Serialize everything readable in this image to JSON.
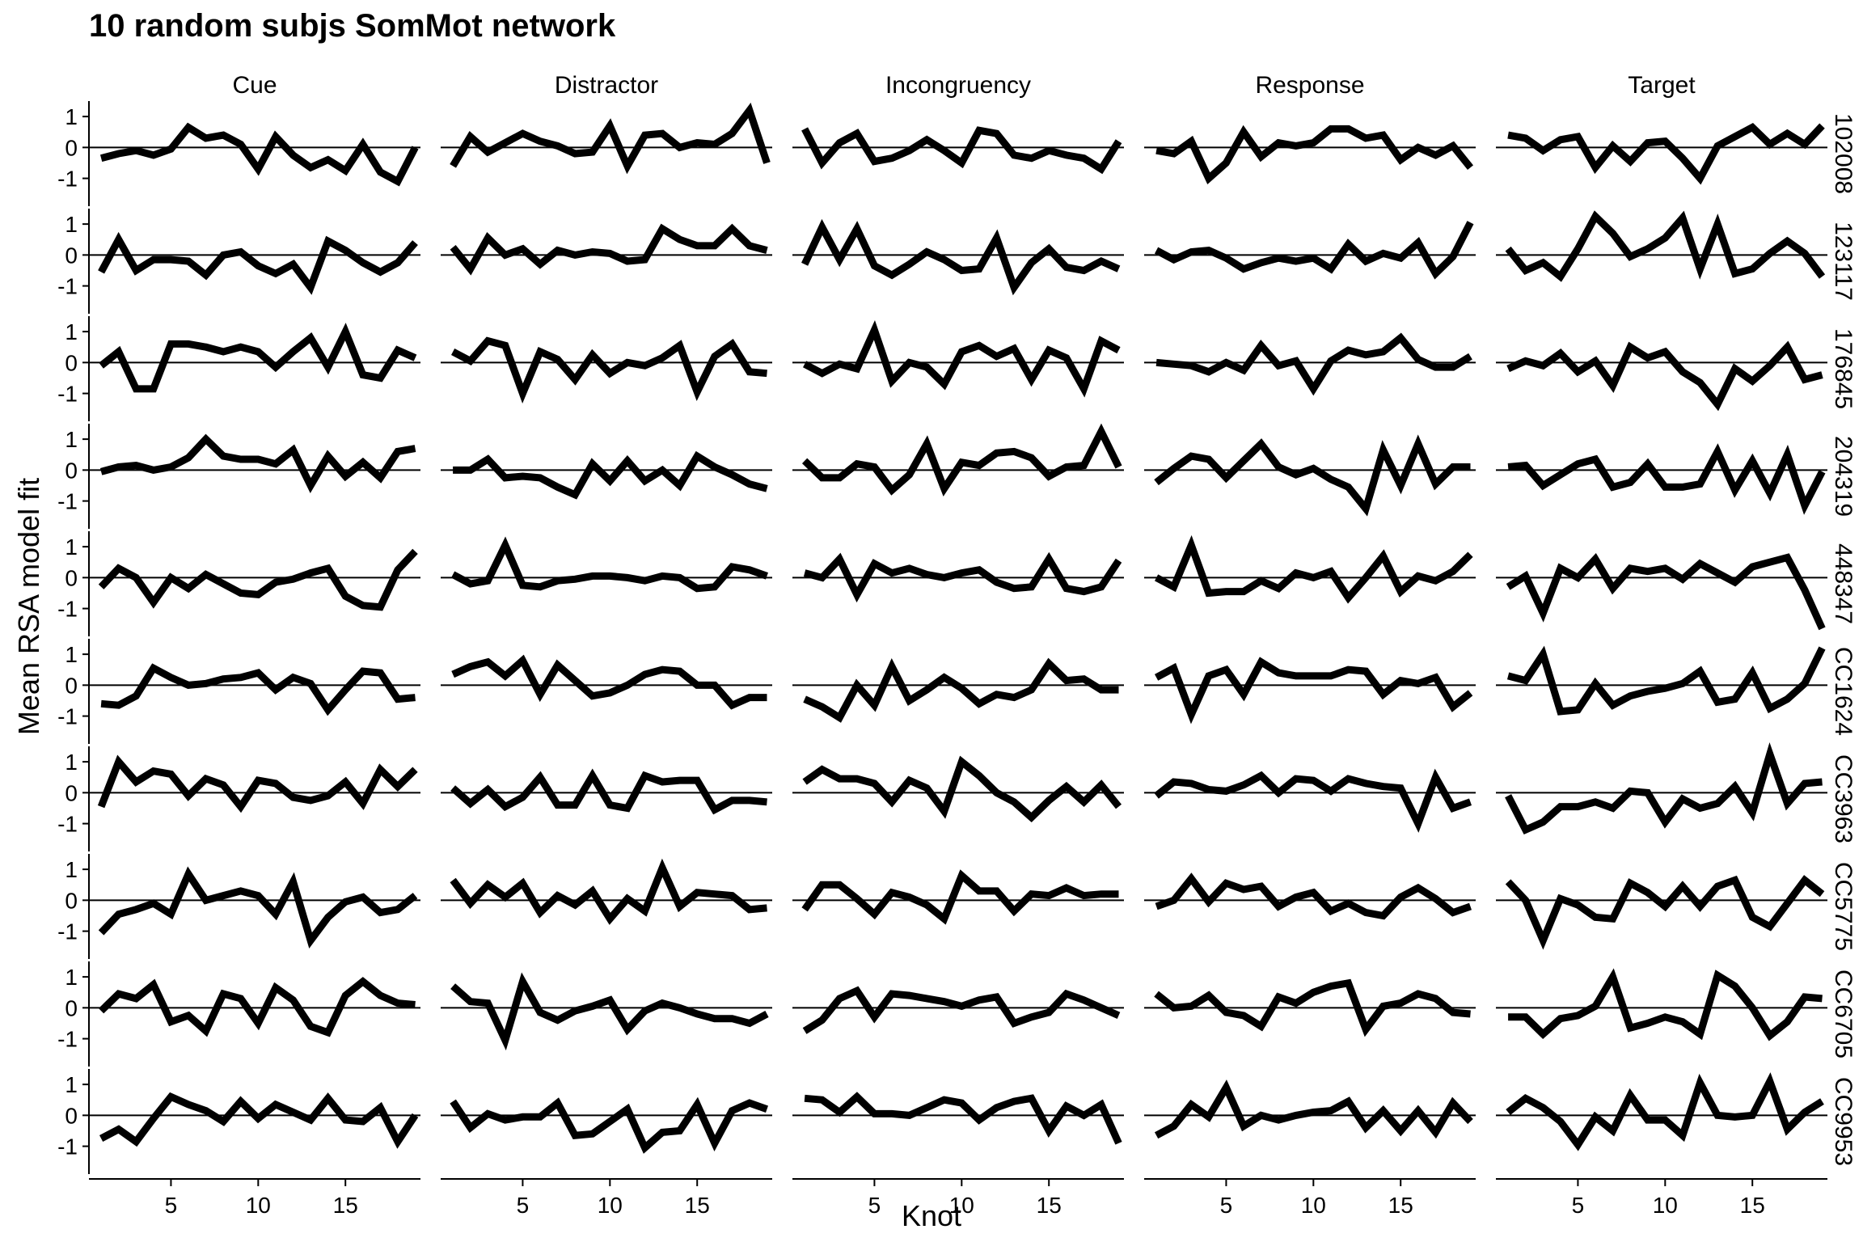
{
  "chart_data": {
    "type": "line",
    "title": "10 random subjs SomMot network",
    "xlabel": "Knot",
    "ylabel": "Mean RSA model fit",
    "x": [
      1,
      2,
      3,
      4,
      5,
      6,
      7,
      8,
      9,
      10,
      11,
      12,
      13,
      14,
      15,
      16,
      17,
      18,
      19
    ],
    "xlim": [
      0.3,
      19.3
    ],
    "ylim": [
      -1.9,
      1.5
    ],
    "xticks": [
      5,
      10,
      15
    ],
    "yticks": [
      -1,
      0,
      1
    ],
    "reference_line": 0,
    "line_color": "#000000",
    "columns": [
      "Cue",
      "Distractor",
      "Incongruency",
      "Response",
      "Target"
    ],
    "rows": [
      "102008",
      "123117",
      "176845",
      "204319",
      "448347",
      "CC1624",
      "CC3963",
      "CC5775",
      "CC6705",
      "CC9953"
    ],
    "series": [
      [
        [
          -0.35,
          -0.2,
          -0.1,
          -0.25,
          -0.05,
          0.65,
          0.3,
          0.4,
          0.1,
          -0.7,
          0.35,
          -0.25,
          -0.65,
          -0.4,
          -0.75,
          0.1,
          -0.8,
          -1.1,
          0.0
        ],
        [
          -0.6,
          0.35,
          -0.15,
          0.15,
          0.45,
          0.2,
          0.05,
          -0.2,
          -0.15,
          0.7,
          -0.6,
          0.4,
          0.45,
          0.0,
          0.15,
          0.1,
          0.45,
          1.2,
          -0.5
        ],
        [
          0.6,
          -0.5,
          0.15,
          0.45,
          -0.45,
          -0.35,
          -0.1,
          0.25,
          -0.1,
          -0.5,
          0.55,
          0.45,
          -0.25,
          -0.35,
          -0.1,
          -0.25,
          -0.35,
          -0.7,
          0.2
        ],
        [
          -0.1,
          -0.2,
          0.2,
          -1.0,
          -0.5,
          0.5,
          -0.3,
          0.15,
          0.05,
          0.15,
          0.6,
          0.6,
          0.3,
          0.4,
          -0.4,
          0.0,
          -0.25,
          0.05,
          -0.65
        ],
        [
          0.4,
          0.3,
          -0.1,
          0.25,
          0.35,
          -0.65,
          0.05,
          -0.45,
          0.15,
          0.2,
          -0.35,
          -1.0,
          0.05,
          0.35,
          0.65,
          0.1,
          0.45,
          0.1,
          0.7
        ]
      ],
      [
        [
          -0.55,
          0.5,
          -0.5,
          -0.15,
          -0.15,
          -0.2,
          -0.65,
          0.0,
          0.1,
          -0.35,
          -0.6,
          -0.3,
          -1.05,
          0.45,
          0.15,
          -0.25,
          -0.55,
          -0.25,
          0.4
        ],
        [
          0.25,
          -0.45,
          0.55,
          0.0,
          0.2,
          -0.3,
          0.15,
          0.0,
          0.1,
          0.05,
          -0.2,
          -0.15,
          0.85,
          0.5,
          0.3,
          0.3,
          0.85,
          0.3,
          0.15
        ],
        [
          -0.3,
          0.9,
          -0.15,
          0.85,
          -0.35,
          -0.65,
          -0.3,
          0.1,
          -0.15,
          -0.5,
          -0.45,
          0.55,
          -1.05,
          -0.25,
          0.2,
          -0.4,
          -0.5,
          -0.2,
          -0.45
        ],
        [
          0.15,
          -0.15,
          0.1,
          0.15,
          -0.1,
          -0.45,
          -0.25,
          -0.1,
          -0.2,
          -0.1,
          -0.45,
          0.35,
          -0.2,
          0.05,
          -0.1,
          0.4,
          -0.6,
          -0.05,
          1.05
        ],
        [
          0.2,
          -0.5,
          -0.25,
          -0.7,
          0.2,
          1.25,
          0.7,
          -0.05,
          0.2,
          0.55,
          1.2,
          -0.45,
          1.0,
          -0.6,
          -0.45,
          0.05,
          0.45,
          0.05,
          -0.7
        ]
      ],
      [
        [
          -0.1,
          0.35,
          -0.85,
          -0.85,
          0.6,
          0.6,
          0.5,
          0.35,
          0.5,
          0.35,
          -0.15,
          0.35,
          0.8,
          -0.15,
          1.0,
          -0.4,
          -0.5,
          0.4,
          0.15
        ],
        [
          0.35,
          0.05,
          0.7,
          0.55,
          -1.0,
          0.35,
          0.1,
          -0.55,
          0.25,
          -0.35,
          0.0,
          -0.1,
          0.15,
          0.55,
          -0.95,
          0.2,
          0.6,
          -0.3,
          -0.35
        ],
        [
          -0.05,
          -0.35,
          -0.05,
          -0.2,
          1.05,
          -0.6,
          0.0,
          -0.15,
          -0.7,
          0.35,
          0.55,
          0.2,
          0.45,
          -0.55,
          0.4,
          0.15,
          -0.85,
          0.7,
          0.4
        ],
        [
          0.0,
          -0.05,
          -0.1,
          -0.3,
          0.0,
          -0.25,
          0.55,
          -0.1,
          0.05,
          -0.85,
          0.05,
          0.4,
          0.25,
          0.35,
          0.8,
          0.1,
          -0.15,
          -0.15,
          0.2
        ],
        [
          -0.2,
          0.05,
          -0.1,
          0.3,
          -0.3,
          0.05,
          -0.75,
          0.5,
          0.15,
          0.35,
          -0.3,
          -0.65,
          -1.35,
          -0.2,
          -0.6,
          -0.1,
          0.5,
          -0.55,
          -0.4
        ]
      ],
      [
        [
          -0.05,
          0.1,
          0.15,
          0.0,
          0.1,
          0.4,
          1.0,
          0.45,
          0.35,
          0.35,
          0.2,
          0.65,
          -0.5,
          0.45,
          -0.2,
          0.25,
          -0.25,
          0.6,
          0.7
        ],
        [
          0.0,
          0.0,
          0.35,
          -0.25,
          -0.2,
          -0.25,
          -0.55,
          -0.8,
          0.2,
          -0.35,
          0.3,
          -0.35,
          0.0,
          -0.5,
          0.45,
          0.1,
          -0.15,
          -0.45,
          -0.6
        ],
        [
          0.3,
          -0.25,
          -0.25,
          0.2,
          0.1,
          -0.65,
          -0.15,
          0.85,
          -0.6,
          0.25,
          0.15,
          0.55,
          0.6,
          0.4,
          -0.2,
          0.1,
          0.15,
          1.25,
          0.1
        ],
        [
          -0.4,
          0.05,
          0.45,
          0.35,
          -0.25,
          0.3,
          0.85,
          0.1,
          -0.15,
          0.05,
          -0.3,
          -0.55,
          -1.25,
          0.65,
          -0.5,
          0.85,
          -0.45,
          0.1,
          0.1
        ],
        [
          0.1,
          0.15,
          -0.5,
          -0.15,
          0.2,
          0.35,
          -0.55,
          -0.4,
          0.2,
          -0.55,
          -0.55,
          -0.45,
          0.6,
          -0.65,
          0.3,
          -0.75,
          0.5,
          -1.15,
          -0.05
        ]
      ],
      [
        [
          -0.3,
          0.3,
          0.0,
          -0.8,
          0.0,
          -0.35,
          0.1,
          -0.2,
          -0.5,
          -0.55,
          -0.15,
          -0.05,
          0.15,
          0.3,
          -0.6,
          -0.9,
          -0.95,
          0.25,
          0.85
        ],
        [
          0.1,
          -0.2,
          -0.1,
          1.05,
          -0.25,
          -0.3,
          -0.1,
          -0.05,
          0.05,
          0.05,
          0.0,
          -0.1,
          0.05,
          0.0,
          -0.35,
          -0.3,
          0.35,
          0.25,
          0.05
        ],
        [
          0.15,
          0.0,
          0.6,
          -0.55,
          0.45,
          0.15,
          0.3,
          0.1,
          0.0,
          0.15,
          0.25,
          -0.15,
          -0.35,
          -0.3,
          0.6,
          -0.35,
          -0.45,
          -0.3,
          0.55
        ],
        [
          0.0,
          -0.3,
          1.05,
          -0.5,
          -0.45,
          -0.45,
          -0.1,
          -0.35,
          0.15,
          0.0,
          0.2,
          -0.65,
          0.0,
          0.7,
          -0.45,
          0.05,
          -0.1,
          0.2,
          0.75
        ],
        [
          -0.3,
          0.05,
          -1.15,
          0.3,
          0.0,
          0.6,
          -0.35,
          0.3,
          0.2,
          0.3,
          -0.05,
          0.45,
          0.15,
          -0.15,
          0.35,
          0.5,
          0.65,
          -0.4,
          -1.65
        ]
      ],
      [
        [
          -0.6,
          -0.65,
          -0.35,
          0.55,
          0.25,
          0.0,
          0.05,
          0.2,
          0.25,
          0.4,
          -0.15,
          0.25,
          0.05,
          -0.8,
          -0.15,
          0.45,
          0.4,
          -0.45,
          -0.4
        ],
        [
          0.35,
          0.6,
          0.75,
          0.3,
          0.8,
          -0.3,
          0.65,
          0.15,
          -0.35,
          -0.25,
          0.0,
          0.35,
          0.5,
          0.45,
          0.0,
          0.0,
          -0.65,
          -0.4,
          -0.4
        ],
        [
          -0.45,
          -0.7,
          -1.05,
          0.0,
          -0.65,
          0.6,
          -0.5,
          -0.15,
          0.25,
          -0.1,
          -0.6,
          -0.3,
          -0.4,
          -0.15,
          0.7,
          0.15,
          0.2,
          -0.15,
          -0.15
        ],
        [
          0.25,
          0.55,
          -0.95,
          0.3,
          0.5,
          -0.3,
          0.75,
          0.4,
          0.3,
          0.3,
          0.3,
          0.5,
          0.45,
          -0.3,
          0.15,
          0.05,
          0.25,
          -0.7,
          -0.25
        ],
        [
          0.3,
          0.15,
          1.0,
          -0.85,
          -0.8,
          0.05,
          -0.65,
          -0.35,
          -0.2,
          -0.1,
          0.05,
          0.45,
          -0.55,
          -0.45,
          0.4,
          -0.75,
          -0.45,
          0.05,
          1.2
        ]
      ],
      [
        [
          -0.45,
          1.0,
          0.35,
          0.7,
          0.6,
          -0.1,
          0.45,
          0.25,
          -0.45,
          0.4,
          0.3,
          -0.15,
          -0.25,
          -0.1,
          0.35,
          -0.35,
          0.75,
          0.2,
          0.75
        ],
        [
          0.15,
          -0.35,
          0.1,
          -0.45,
          -0.15,
          0.5,
          -0.4,
          -0.4,
          0.55,
          -0.4,
          -0.5,
          0.55,
          0.35,
          0.4,
          0.4,
          -0.55,
          -0.25,
          -0.25,
          -0.3
        ],
        [
          0.35,
          0.75,
          0.45,
          0.45,
          0.3,
          -0.3,
          0.4,
          0.15,
          -0.6,
          1.0,
          0.55,
          0.0,
          -0.3,
          -0.8,
          -0.25,
          0.2,
          -0.3,
          0.25,
          -0.45
        ],
        [
          -0.1,
          0.35,
          0.3,
          0.1,
          0.05,
          0.25,
          0.55,
          0.0,
          0.45,
          0.4,
          0.05,
          0.45,
          0.3,
          0.2,
          0.15,
          -1.0,
          0.5,
          -0.5,
          -0.3
        ],
        [
          -0.1,
          -1.2,
          -0.95,
          -0.45,
          -0.45,
          -0.3,
          -0.5,
          0.05,
          0.0,
          -0.95,
          -0.2,
          -0.5,
          -0.35,
          0.2,
          -0.65,
          1.25,
          -0.35,
          0.3,
          0.35
        ]
      ],
      [
        [
          -1.05,
          -0.45,
          -0.3,
          -0.1,
          -0.45,
          0.85,
          0.0,
          0.15,
          0.3,
          0.15,
          -0.45,
          0.6,
          -1.3,
          -0.55,
          -0.05,
          0.1,
          -0.4,
          -0.3,
          0.15
        ],
        [
          0.65,
          -0.1,
          0.5,
          0.1,
          0.55,
          -0.4,
          0.15,
          -0.15,
          0.3,
          -0.6,
          0.05,
          -0.35,
          1.05,
          -0.2,
          0.25,
          0.2,
          0.15,
          -0.3,
          -0.25
        ],
        [
          -0.3,
          0.5,
          0.5,
          0.05,
          -0.45,
          0.25,
          0.1,
          -0.15,
          -0.6,
          0.8,
          0.3,
          0.3,
          -0.35,
          0.2,
          0.15,
          0.4,
          0.15,
          0.2,
          0.2
        ],
        [
          -0.2,
          0.0,
          0.7,
          -0.05,
          0.55,
          0.35,
          0.45,
          -0.2,
          0.1,
          0.25,
          -0.35,
          -0.1,
          -0.4,
          -0.5,
          0.1,
          0.4,
          0.05,
          -0.4,
          -0.2
        ],
        [
          0.6,
          0.0,
          -1.3,
          0.05,
          -0.15,
          -0.55,
          -0.6,
          0.55,
          0.25,
          -0.2,
          0.45,
          -0.2,
          0.45,
          0.65,
          -0.55,
          -0.85,
          -0.1,
          0.65,
          0.2
        ]
      ],
      [
        [
          -0.1,
          0.45,
          0.3,
          0.75,
          -0.45,
          -0.25,
          -0.75,
          0.45,
          0.3,
          -0.5,
          0.65,
          0.25,
          -0.6,
          -0.8,
          0.4,
          0.85,
          0.4,
          0.15,
          0.1
        ],
        [
          0.7,
          0.2,
          0.15,
          -1.05,
          0.85,
          -0.15,
          -0.4,
          -0.1,
          0.05,
          0.25,
          -0.7,
          -0.1,
          0.15,
          0.0,
          -0.2,
          -0.35,
          -0.35,
          -0.5,
          -0.2
        ],
        [
          -0.75,
          -0.4,
          0.3,
          0.55,
          -0.3,
          0.45,
          0.4,
          0.3,
          0.2,
          0.05,
          0.25,
          0.35,
          -0.5,
          -0.3,
          -0.15,
          0.45,
          0.25,
          0.0,
          -0.25
        ],
        [
          0.45,
          0.0,
          0.05,
          0.4,
          -0.15,
          -0.25,
          -0.6,
          0.35,
          0.15,
          0.5,
          0.7,
          0.8,
          -0.7,
          0.05,
          0.15,
          0.45,
          0.3,
          -0.15,
          -0.2
        ],
        [
          -0.3,
          -0.3,
          -0.85,
          -0.35,
          -0.25,
          0.05,
          1.0,
          -0.65,
          -0.5,
          -0.3,
          -0.45,
          -0.85,
          1.05,
          0.7,
          0.0,
          -0.9,
          -0.45,
          0.35,
          0.3
        ]
      ],
      [
        [
          -0.75,
          -0.45,
          -0.85,
          -0.1,
          0.6,
          0.35,
          0.15,
          -0.2,
          0.45,
          -0.1,
          0.35,
          0.1,
          -0.15,
          0.55,
          -0.15,
          -0.2,
          0.25,
          -0.85,
          0.0
        ],
        [
          0.45,
          -0.4,
          0.05,
          -0.15,
          -0.05,
          -0.05,
          0.4,
          -0.65,
          -0.6,
          -0.2,
          0.2,
          -1.05,
          -0.55,
          -0.5,
          0.35,
          -0.9,
          0.15,
          0.4,
          0.2
        ],
        [
          0.55,
          0.5,
          0.1,
          0.6,
          0.05,
          0.05,
          0.0,
          0.25,
          0.5,
          0.4,
          -0.15,
          0.25,
          0.45,
          0.55,
          -0.5,
          0.3,
          0.0,
          0.35,
          -0.9
        ],
        [
          -0.65,
          -0.35,
          0.35,
          -0.05,
          0.9,
          -0.35,
          0.0,
          -0.15,
          0.0,
          0.1,
          0.15,
          0.45,
          -0.4,
          0.15,
          -0.5,
          0.15,
          -0.55,
          0.4,
          -0.2
        ],
        [
          0.1,
          0.55,
          0.25,
          -0.2,
          -0.95,
          -0.05,
          -0.5,
          0.65,
          -0.15,
          -0.15,
          -0.65,
          1.05,
          0.0,
          -0.05,
          0.0,
          1.1,
          -0.45,
          0.1,
          0.45
        ]
      ]
    ]
  }
}
